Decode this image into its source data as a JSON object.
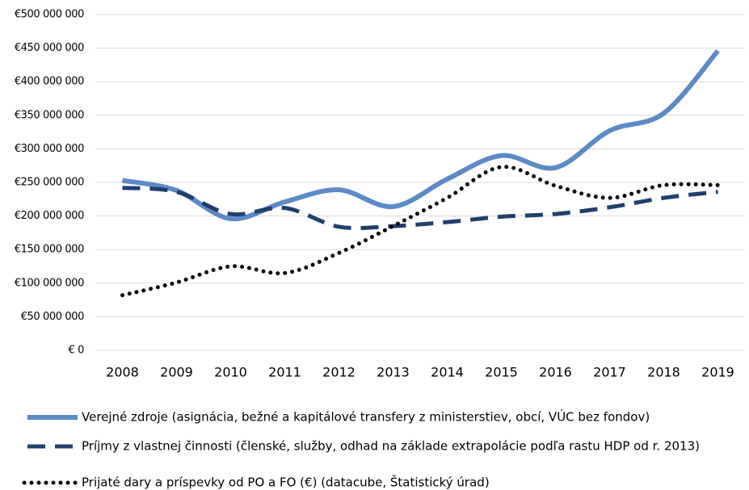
{
  "chart_data": {
    "type": "line",
    "categories": [
      "2008",
      "2009",
      "2010",
      "2011",
      "2012",
      "2013",
      "2014",
      "2015",
      "2016",
      "2017",
      "2018",
      "2019"
    ],
    "series": [
      {
        "name": "Verejné zdroje (asignácia, bežné a kapitálové transfery z ministerstiev, obcí, VÚC bez fondov)",
        "color": "#5b8ac6",
        "style": "solid",
        "values": [
          253000000,
          238000000,
          196000000,
          221000000,
          239000000,
          214000000,
          255000000,
          290000000,
          272000000,
          327000000,
          353000000,
          446000000
        ]
      },
      {
        "name": "Príjmy z vlastnej činnosti (členské, služby, odhad na základe extrapolácie podľa rastu HDP od r. 2013)",
        "color": "#1f3f6e",
        "style": "dashed",
        "values": [
          242000000,
          236000000,
          203000000,
          212000000,
          184000000,
          185000000,
          191000000,
          199000000,
          203000000,
          213000000,
          227000000,
          236000000
        ]
      },
      {
        "name": "Prijaté dary a príspevky od PO a FO (€) (datacube, Štatistický úrad)",
        "color": "#000000",
        "style": "dotted",
        "values": [
          82000000,
          101000000,
          125000000,
          115000000,
          145000000,
          185000000,
          227000000,
          273000000,
          245000000,
          227000000,
          246000000,
          246000000
        ]
      }
    ],
    "ylim": [
      0,
      500000000
    ],
    "yticks": [
      {
        "value": 0,
        "label": "€ 0"
      },
      {
        "value": 50000000,
        "label": "€50 000 000"
      },
      {
        "value": 100000000,
        "label": "€100 000 000"
      },
      {
        "value": 150000000,
        "label": "€150 000 000"
      },
      {
        "value": 200000000,
        "label": "€200 000 000"
      },
      {
        "value": 250000000,
        "label": "€250 000 000"
      },
      {
        "value": 300000000,
        "label": "€300 000 000"
      },
      {
        "value": 350000000,
        "label": "€350 000 000"
      },
      {
        "value": 400000000,
        "label": "€400 000 000"
      },
      {
        "value": 450000000,
        "label": "€450 000 000"
      },
      {
        "value": 500000000,
        "label": "€500 000 000"
      }
    ],
    "grid": true,
    "legend": "bottom"
  }
}
